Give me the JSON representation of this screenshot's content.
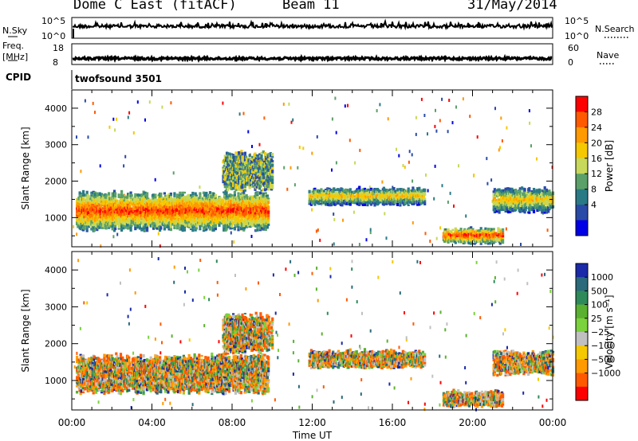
{
  "header": {
    "title": "Dome C East (fitACF)",
    "beam": "Beam 11",
    "date": "31/May/2014"
  },
  "strips": {
    "nsky_label": "N.Sky",
    "nsky_ticks": [
      "10^5",
      "10^0"
    ],
    "nsearch_label": "N.Search",
    "nsearch_ticks": [
      "10^5",
      "10^0"
    ],
    "freq_label_1": "Freq.",
    "freq_label_2": "[MHz]",
    "freq_ticks": [
      "18",
      "8"
    ],
    "nave_label": "Nave",
    "nave_ticks": [
      "60",
      "0"
    ],
    "cpid_label": "CPID",
    "cpid_value": "twofsound 3501"
  },
  "chart_data": [
    {
      "type": "heatmap",
      "name": "power",
      "ylabel": "Slant Range [km]",
      "ylim": [
        200,
        4500
      ],
      "yticks": [
        "4000",
        "3000",
        "2000",
        "1000"
      ],
      "xlabel": "Time UT",
      "xlim": [
        0,
        24
      ],
      "xticks": [
        "00:00",
        "04:00",
        "08:00",
        "12:00",
        "16:00",
        "20:00",
        "00:00"
      ],
      "colorbar": {
        "label": "Power [dB]",
        "ticks": [
          "28",
          "24",
          "20",
          "16",
          "12",
          "8",
          "4"
        ],
        "colors": [
          "#ff0000",
          "#ff5a00",
          "#ff9a00",
          "#f5c800",
          "#c8d85a",
          "#5aa068",
          "#2a7a86",
          "#2a4aa8",
          "#0000e6"
        ]
      },
      "regions": [
        {
          "t0": 0.2,
          "t1": 9.8,
          "r0": 600,
          "r1": 1700,
          "level": "strong"
        },
        {
          "t0": 7.5,
          "t1": 10.0,
          "r0": 1700,
          "r1": 2800,
          "level": "weak"
        },
        {
          "t0": 11.8,
          "t1": 17.6,
          "r0": 1300,
          "r1": 1800,
          "level": "medium"
        },
        {
          "t0": 18.5,
          "t1": 21.5,
          "r0": 250,
          "r1": 700,
          "level": "strong"
        },
        {
          "t0": 21.0,
          "t1": 24.0,
          "r0": 1100,
          "r1": 1800,
          "level": "medium"
        }
      ]
    },
    {
      "type": "heatmap",
      "name": "velocity",
      "ylabel": "Slant Range [km]",
      "ylim": [
        200,
        4500
      ],
      "yticks": [
        "4000",
        "3000",
        "2000",
        "1000"
      ],
      "xlabel": "Time UT",
      "xlim": [
        0,
        24
      ],
      "xticks": [
        "00:00",
        "04:00",
        "08:00",
        "12:00",
        "16:00",
        "20:00",
        "00:00"
      ],
      "colorbar": {
        "label": "Velocity [m s⁻¹]",
        "ticks": [
          "1000",
          "500",
          "100",
          "25",
          "−25",
          "−100",
          "−500",
          "−1000"
        ],
        "colors": [
          "#1a2aa8",
          "#2a6a7a",
          "#2e8a5a",
          "#5ab030",
          "#7ad23c",
          "#c0c0c0",
          "#f5c800",
          "#ff9a00",
          "#ff5a00",
          "#ff0000"
        ]
      },
      "regions": [
        {
          "t0": 0.2,
          "t1": 9.8,
          "r0": 600,
          "r1": 1700,
          "level": "mixed"
        },
        {
          "t0": 7.5,
          "t1": 10.0,
          "r0": 1700,
          "r1": 2800,
          "level": "mixed"
        },
        {
          "t0": 11.8,
          "t1": 17.6,
          "r0": 1300,
          "r1": 1800,
          "level": "mixed"
        },
        {
          "t0": 18.5,
          "t1": 21.5,
          "r0": 250,
          "r1": 700,
          "level": "mixed"
        },
        {
          "t0": 21.0,
          "t1": 24.0,
          "r0": 1100,
          "r1": 1800,
          "level": "mixed"
        }
      ]
    }
  ]
}
